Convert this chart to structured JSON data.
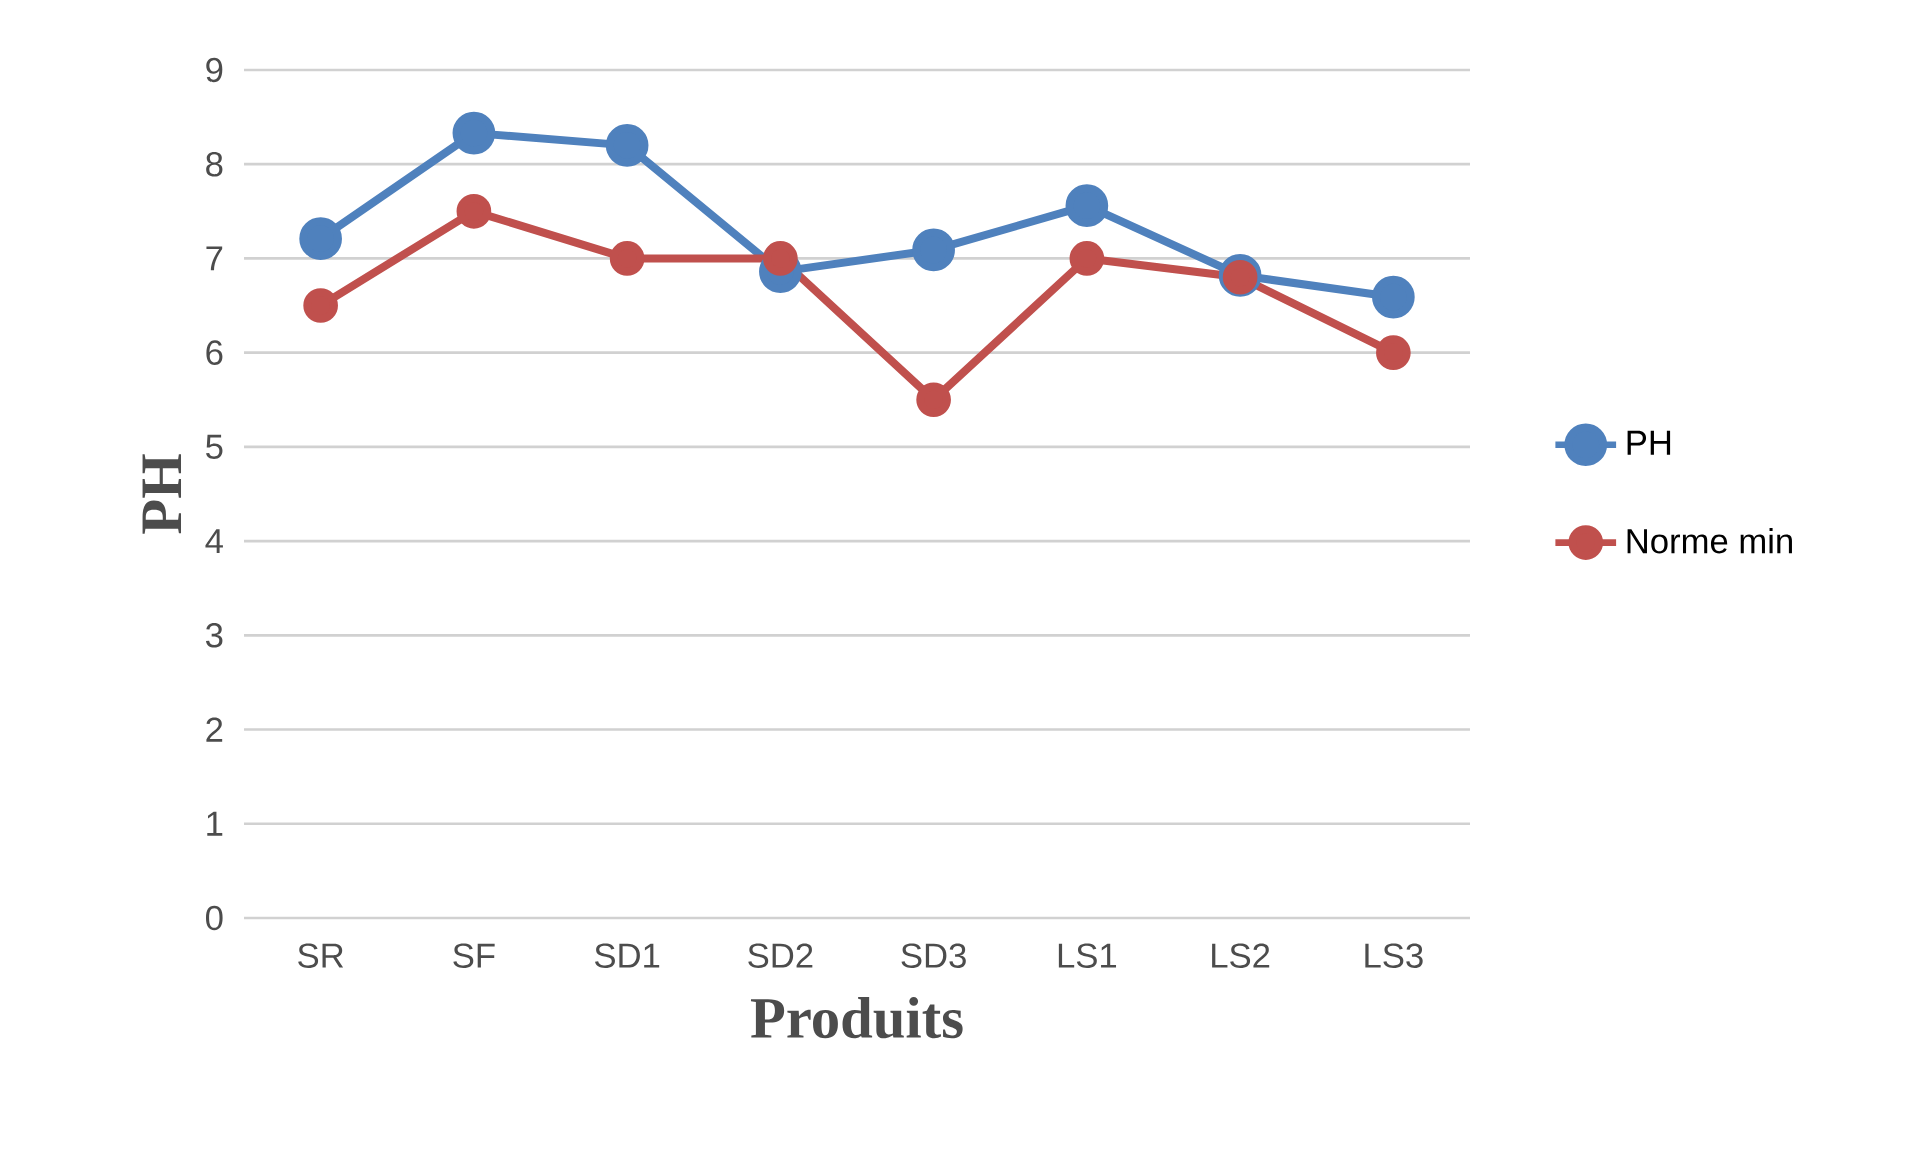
{
  "chart_data": {
    "type": "line",
    "xlabel": "Produits",
    "ylabel": "PH",
    "categories": [
      "SR",
      "SF",
      "SD1",
      "SD2",
      "SD3",
      "LS1",
      "LS2",
      "LS3"
    ],
    "series": [
      {
        "name": "PH",
        "color": "#4f81bd",
        "values": [
          7.21,
          8.33,
          8.2,
          6.86,
          7.09,
          7.56,
          6.82,
          6.59
        ]
      },
      {
        "name": "Norme min",
        "color": "#c0504d",
        "values": [
          6.5,
          7.5,
          7,
          7,
          5.5,
          7,
          6.8,
          6
        ]
      }
    ],
    "ylim": [
      0,
      9
    ],
    "yticks": [
      0,
      1,
      2,
      3,
      4,
      5,
      6,
      7,
      8,
      9
    ],
    "grid": "y",
    "legend": "right",
    "marker": "circle",
    "line_style": "solid"
  }
}
